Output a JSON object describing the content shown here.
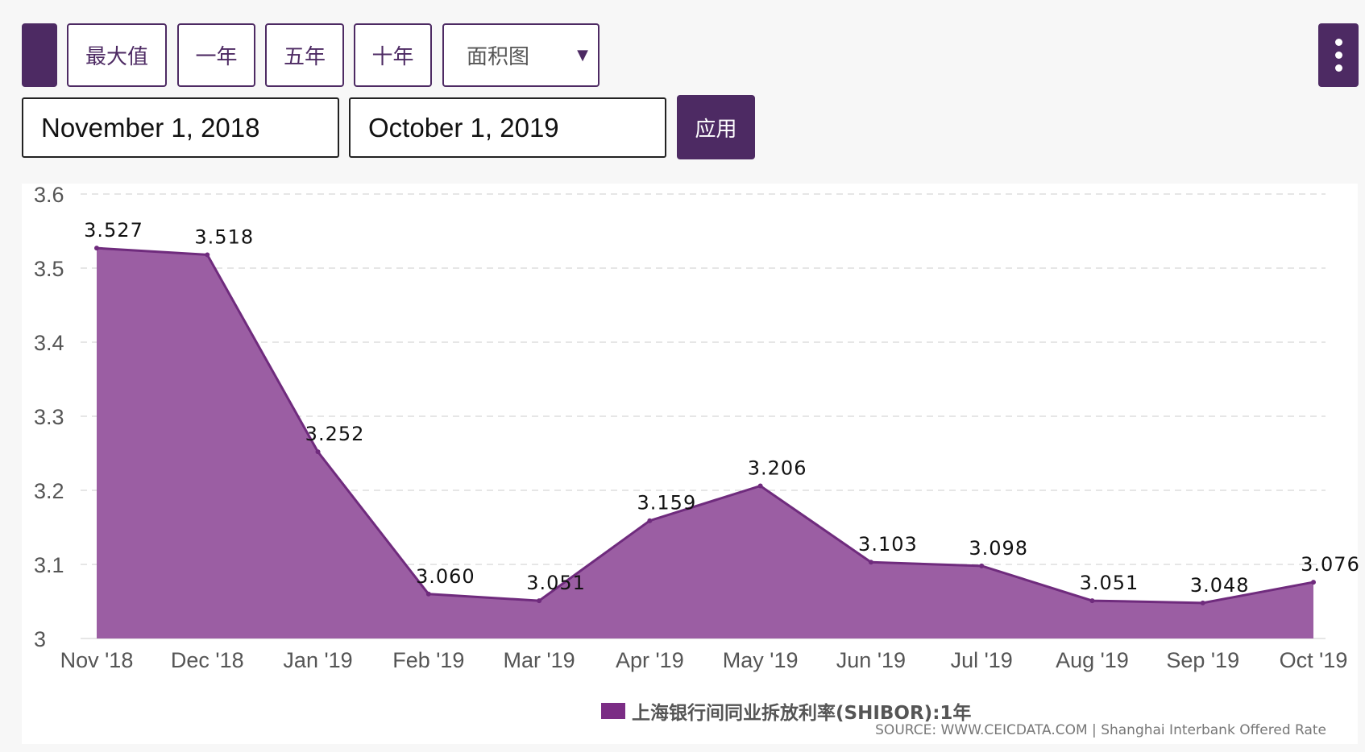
{
  "toolbar": {
    "range_buttons": [
      "最大值",
      "一年",
      "五年",
      "十年"
    ],
    "chart_type_select": "面积图",
    "start_date": "November 1, 2018",
    "end_date": "October 1, 2019",
    "apply_label": "应用"
  },
  "colors": {
    "accent": "#4d2a63",
    "area_fill": "#9b5ea3",
    "area_line": "#6f2b7d",
    "legend_swatch": "#7b2d85"
  },
  "chart_data": {
    "type": "area",
    "categories": [
      "Nov '18",
      "Dec '18",
      "Jan '19",
      "Feb '19",
      "Mar '19",
      "Apr '19",
      "May '19",
      "Jun '19",
      "Jul '19",
      "Aug '19",
      "Sep '19",
      "Oct '19"
    ],
    "series": [
      {
        "name": "上海银行间同业拆放利率(SHIBOR):1年",
        "values": [
          3.527,
          3.518,
          3.252,
          3.06,
          3.051,
          3.159,
          3.206,
          3.103,
          3.098,
          3.051,
          3.048,
          3.076
        ],
        "labels": [
          "3.527",
          "3.518",
          "3.252",
          "3.060",
          "3.051",
          "3.159",
          "3.206",
          "3.103",
          "3.098",
          "3.051",
          "3.048",
          "3.076"
        ]
      }
    ],
    "y_ticks": [
      "3",
      "3.1",
      "3.2",
      "3.3",
      "3.4",
      "3.5",
      "3.6"
    ],
    "ylim": [
      3,
      3.6
    ],
    "grid": true,
    "legend_position": "bottom-center",
    "source": "SOURCE: WWW.CEICDATA.COM | Shanghai Interbank Offered Rate"
  }
}
